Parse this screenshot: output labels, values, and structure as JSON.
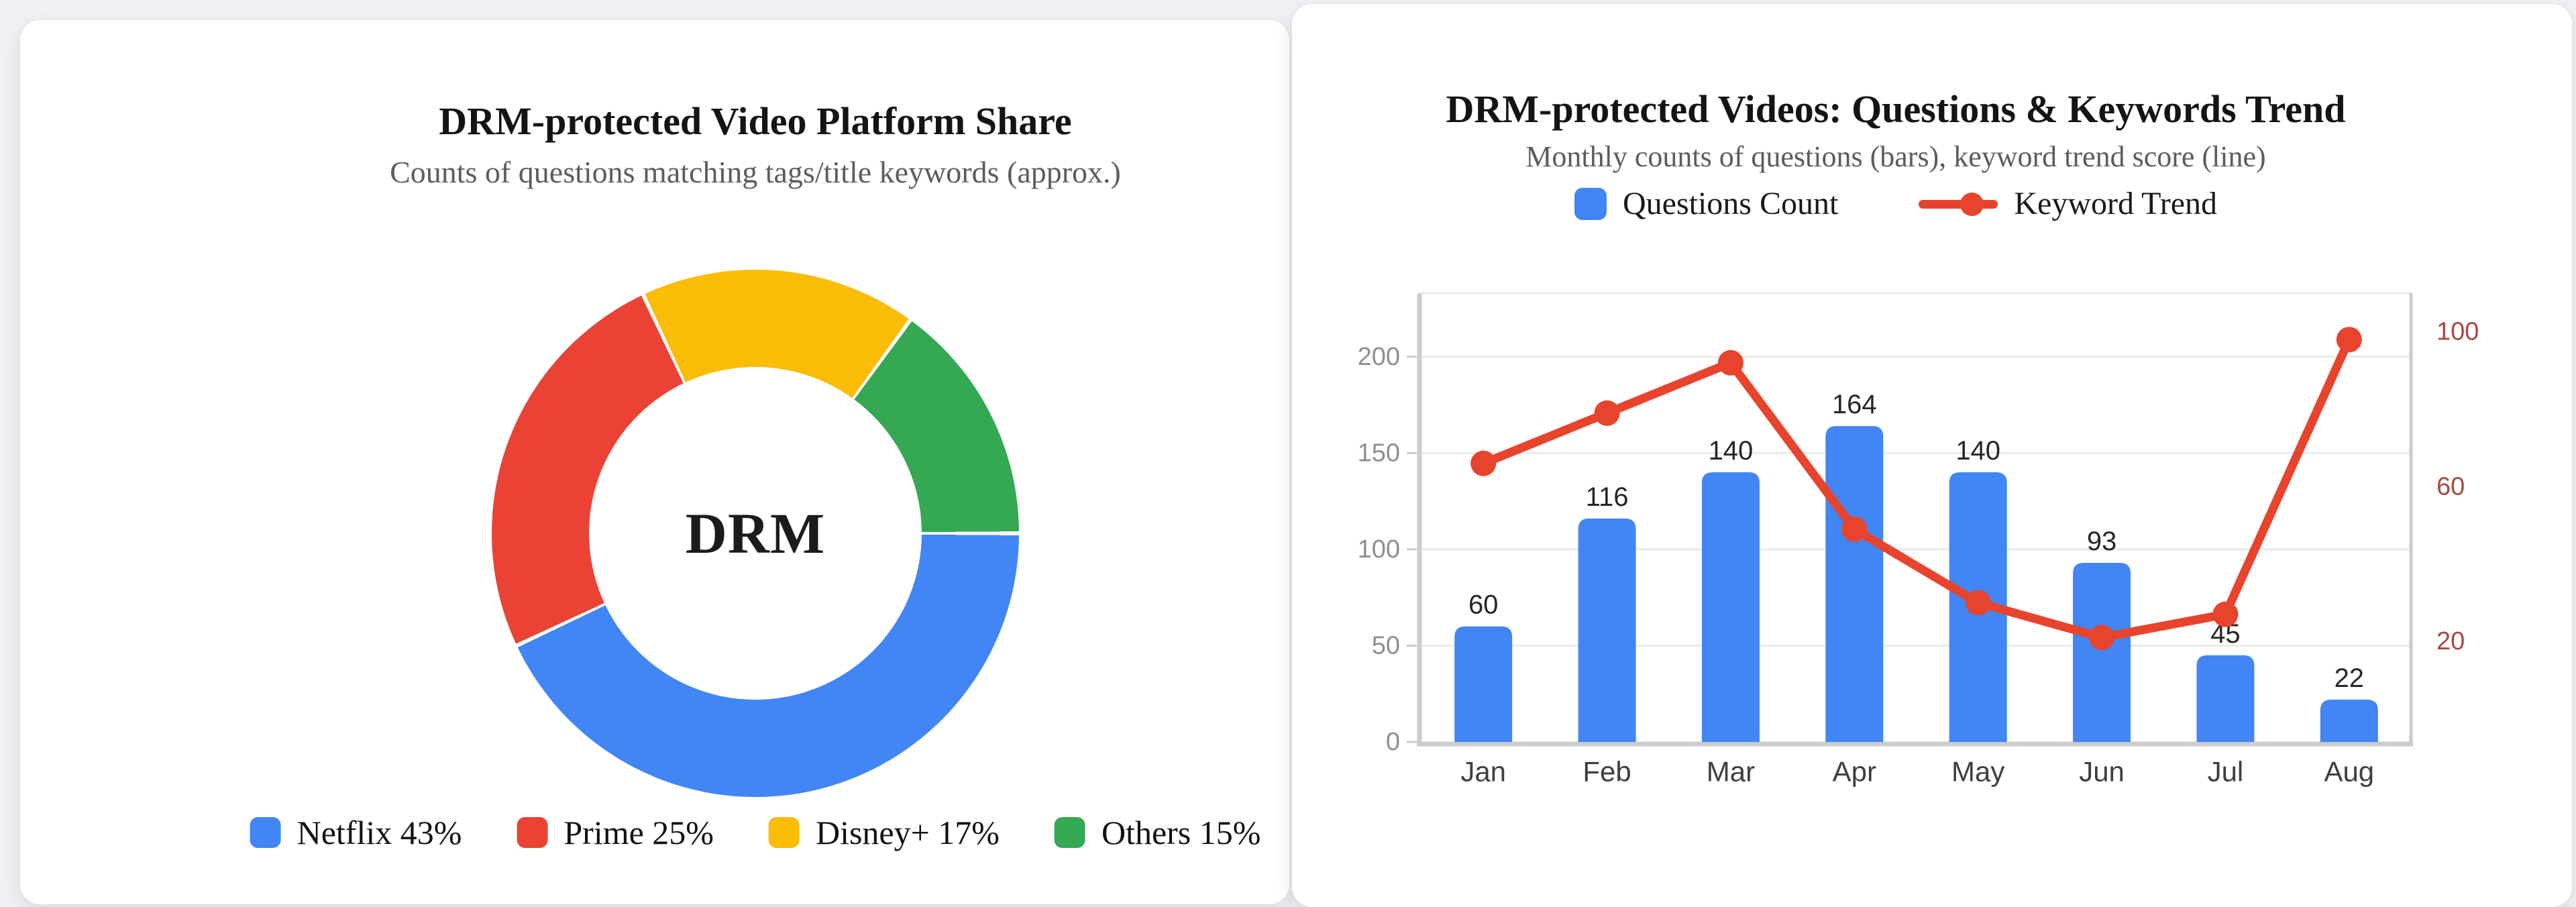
{
  "page": {
    "background": "#eff1f4",
    "card_background": "#ffffff"
  },
  "chart_data": [
    {
      "type": "pie",
      "variant": "doughnut",
      "title": "DRM-protected Video Platform Share",
      "subtitle": "Counts of questions matching tags/title keywords (approx.)",
      "center_label": "DRM",
      "labels": [
        "Netflix",
        "Prime",
        "Disney+",
        "Others"
      ],
      "values": [
        43,
        25,
        17,
        15
      ],
      "unit": "%",
      "colors": [
        "#4285F4",
        "#EA4335",
        "#FBBC05",
        "#34A853"
      ],
      "legend_labels": [
        "Netflix 43%",
        "Prime 25%",
        "Disney+ 17%",
        "Others 15%"
      ],
      "legend_position": "bottom",
      "cutout_ratio": 0.63,
      "start": "3-oclock-clockwise"
    },
    {
      "type": "bar",
      "variant": "bar+line-combo",
      "title": "DRM-protected Videos: Questions & Keywords Trend",
      "subtitle": "Monthly counts of questions (bars), keyword trend score (line)",
      "categories": [
        "Jan",
        "Feb",
        "Mar",
        "Apr",
        "May",
        "Jun",
        "Jul",
        "Aug"
      ],
      "series": [
        {
          "name": "Questions Count",
          "type": "bar",
          "axis": "left",
          "color": "#4285F4",
          "values": [
            60,
            116,
            140,
            164,
            140,
            93,
            45,
            22
          ],
          "value_labels_shown": true
        },
        {
          "name": "Keyword Trend",
          "type": "line",
          "axis": "right",
          "color": "#E8432D",
          "point_color": "#E8432D",
          "values": [
            66,
            79,
            92,
            49,
            30,
            21,
            27,
            98
          ]
        }
      ],
      "left_axis": {
        "ticks": [
          0,
          50,
          100,
          150,
          200
        ],
        "min": 0,
        "max": 233,
        "label_color": "#8b8f93"
      },
      "right_axis": {
        "ticks": [
          20,
          60,
          100
        ],
        "min": -6,
        "max": 110,
        "label_color": "#A8483F"
      },
      "grid": {
        "line_color": "#ebebeb",
        "top_border_color": "#e8e8e8",
        "axis_line_color": "#c9cbcd",
        "value_label_color": "#262626",
        "category_label_color": "#3c4043"
      },
      "legend_position": "top"
    }
  ]
}
